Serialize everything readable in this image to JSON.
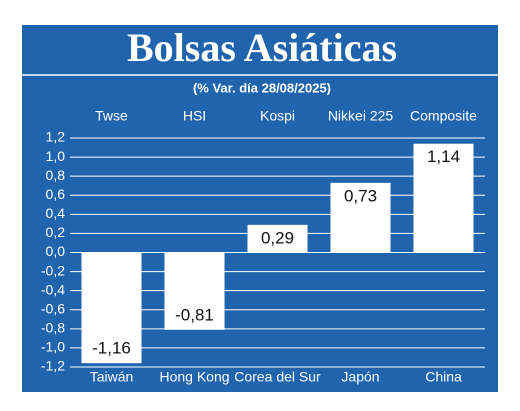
{
  "chart_data": {
    "type": "bar",
    "title": "Bolsas Asiáticas",
    "subtitle": "(% Var. día 28/08/2025)",
    "indices": [
      "Twse",
      "HSI",
      "Kospi",
      "Nikkei 225",
      "Composite"
    ],
    "categories": [
      "Taiwán",
      "Hong Kong",
      "Corea del Sur",
      "Japón",
      "China"
    ],
    "values": [
      -1.16,
      -0.81,
      0.29,
      0.73,
      1.14
    ],
    "value_labels": [
      "-1,16",
      "-0,81",
      "0,29",
      "0,73",
      "1,14"
    ],
    "color": "#ffffff",
    "background": "#1f64ad",
    "ylim": [
      -1.2,
      1.2
    ],
    "yticks": [
      {
        "value": -1.2,
        "label": "-1,2"
      },
      {
        "value": -1.0,
        "label": "-1,0"
      },
      {
        "value": -0.8,
        "label": "-0,8"
      },
      {
        "value": -0.6,
        "label": "-0,6"
      },
      {
        "value": -0.4,
        "label": "-0,4"
      },
      {
        "value": -0.2,
        "label": "-0,2"
      },
      {
        "value": 0,
        "label": "0,0"
      },
      {
        "value": 0.2,
        "label": "0,2"
      },
      {
        "value": 0.4,
        "label": "0,4"
      },
      {
        "value": 0.6,
        "label": "0,6"
      },
      {
        "value": 0.8,
        "label": "0,8"
      },
      {
        "value": 1.0,
        "label": "1,0"
      },
      {
        "value": 1.2,
        "label": "1,2"
      }
    ],
    "grid": true
  }
}
